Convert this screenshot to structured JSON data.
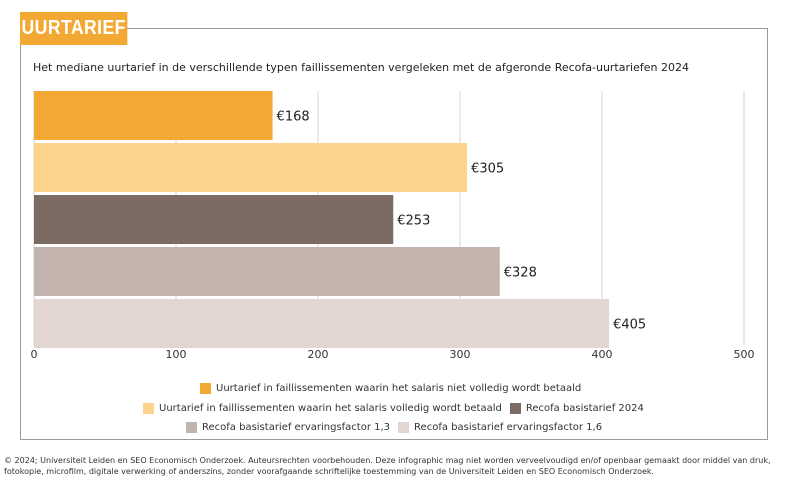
{
  "header": {
    "tag": "UURTARIEF",
    "accent": "#f2a832"
  },
  "chart_data": {
    "type": "bar",
    "orientation": "horizontal",
    "title": "Het mediane uurtarief in de verschillende typen faillissementen vergeleken met de afgeronde Recofa-uurtariefen 2024",
    "categories": [
      "Uurtarief in faillissementen waarin het salaris niet volledig wordt betaald",
      "Uurtarief in faillissementen waarin het salaris volledig wordt betaald",
      "Recofa basistarief 2024",
      "Recofa basistarief ervaringsfactor 1,3",
      "Recofa basistarief ervaringsfactor 1,6"
    ],
    "values": [
      168,
      305,
      253,
      328,
      405
    ],
    "value_labels": [
      "€168",
      "€305",
      "€253",
      "€328",
      "€405"
    ],
    "colors": [
      "#f2a832",
      "#fcd38b",
      "#7c6b62",
      "#c2b3ad",
      "#e3d6d0"
    ],
    "xlim": [
      0,
      500
    ],
    "xticks": [
      0,
      100,
      200,
      300,
      400,
      500
    ],
    "xtick_labels": [
      "0",
      "100",
      "200",
      "300",
      "400",
      "500"
    ],
    "grid": true,
    "legend_position": "bottom"
  },
  "footer": {
    "text": "© 2024; Universiteit Leiden en SEO Economisch Onderzoek. Auteursrechten voorbehouden. Deze infographic mag niet worden verveelvoudigd en/of openbaar gemaakt door middel van druk, fotokopie, microfilm, digitale verwerking of anderszins, zonder voorafgaande schriftelijke toestemming van de Universiteit Leiden en SEO Economisch Onderzoek."
  }
}
